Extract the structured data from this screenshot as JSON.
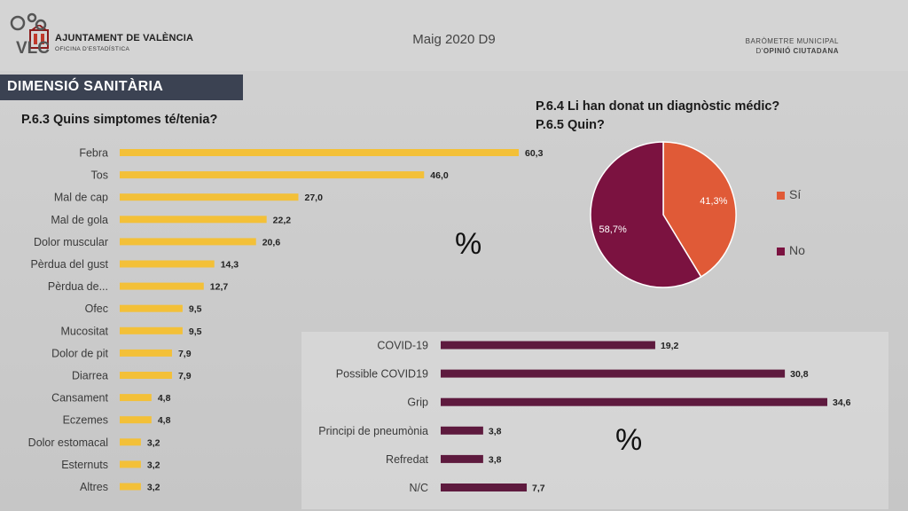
{
  "header": {
    "org_name": "AJUNTAMENT DE VALÈNCIA",
    "org_sub": "OFICINA D'ESTADÍSTICA",
    "period": "Maig 2020 D9",
    "barometer_line1": "BARÒMETRE MUNICIPAL",
    "barometer_line2_prefix": "D'",
    "barometer_line2_bold": "OPINIÓ CIUTADANA",
    "brand": "VLC"
  },
  "section": {
    "title": "DIMENSIÓ SANITÀRIA"
  },
  "percent_symbol": "%",
  "colors": {
    "yellow": "#f3c038",
    "purple": "#5e1a3e",
    "pie_yes": "#e05a37",
    "pie_no": "#7b1240",
    "banner": "#3b4252"
  },
  "chart_data": [
    {
      "type": "bar",
      "orientation": "horizontal",
      "title": "P.6.3 Quins simptomes té/tenia?",
      "unit": "%",
      "categories": [
        "Febra",
        "Tos",
        "Mal de cap",
        "Mal de gola",
        "Dolor muscular",
        "Pèrdua del gust",
        "Pèrdua de...",
        "Ofec",
        "Mucositat",
        "Dolor de pit",
        "Diarrea",
        "Cansament",
        "Eczemes",
        "Dolor estomacal",
        "Esternuts",
        "Altres"
      ],
      "values": [
        60.3,
        46.0,
        27.0,
        22.2,
        20.6,
        14.3,
        12.7,
        9.5,
        9.5,
        7.9,
        7.9,
        4.8,
        4.8,
        3.2,
        3.2,
        3.2
      ],
      "value_labels": [
        "60,3",
        "46,0",
        "27,0",
        "22,2",
        "20,6",
        "14,3",
        "12,7",
        "9,5",
        "9,5",
        "7,9",
        "7,9",
        "4,8",
        "4,8",
        "3,2",
        "3,2",
        "3,2"
      ]
    },
    {
      "type": "pie",
      "title_line1": "P.6.4 Li han donat un diagnòstic médic?",
      "title_line2": "P.6.5 Quin?",
      "labels": [
        "Sí",
        "No"
      ],
      "values": [
        41.3,
        58.7
      ],
      "value_labels": [
        "41,3%",
        "58,7%"
      ]
    },
    {
      "type": "bar",
      "orientation": "horizontal",
      "unit": "%",
      "categories": [
        "COVID-19",
        "Possible COVID19",
        "Grip",
        "Principi de pneumònia",
        "Refredat",
        "N/C"
      ],
      "values": [
        19.2,
        30.8,
        34.6,
        3.8,
        3.8,
        7.7
      ],
      "value_labels": [
        "19,2",
        "30,8",
        "34,6",
        "3,8",
        "3,8",
        "7,7"
      ]
    }
  ]
}
